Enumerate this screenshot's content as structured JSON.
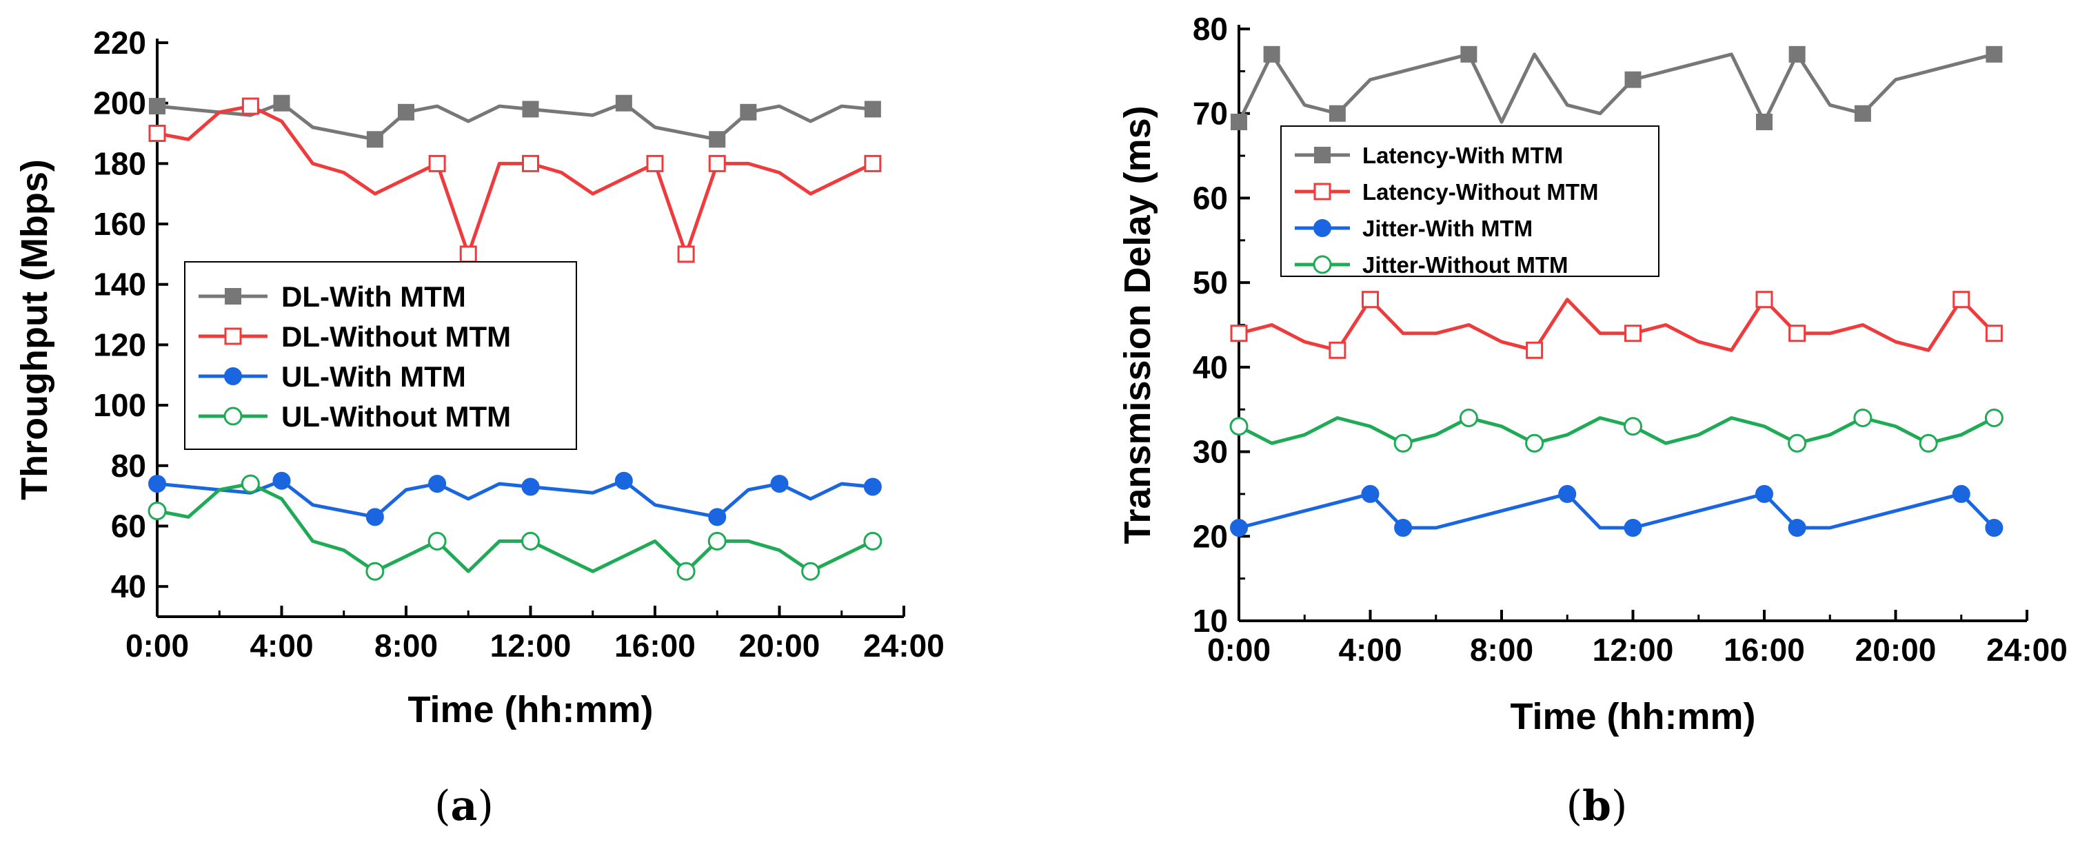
{
  "chart_data": [
    {
      "type": "line",
      "caption": "(a)",
      "caption_letter": "a",
      "xlabel": "Time (hh:mm)",
      "ylabel": "Throughput (Mbps)",
      "xlim": [
        0,
        24
      ],
      "ylim": [
        30,
        220
      ],
      "xticks": [
        0,
        4,
        8,
        12,
        16,
        20,
        24
      ],
      "xtick_labels": [
        "0:00",
        "4:00",
        "8:00",
        "12:00",
        "16:00",
        "20:00",
        "24:00"
      ],
      "yticks": [
        40,
        60,
        80,
        100,
        120,
        140,
        160,
        180,
        200,
        220
      ],
      "ytick_labels": [
        "40",
        "60",
        "80",
        "100",
        "120",
        "140",
        "160",
        "180",
        "200",
        "220"
      ],
      "legend_position": "center-left",
      "x": [
        0,
        1,
        2,
        3,
        4,
        5,
        6,
        7,
        8,
        9,
        10,
        11,
        12,
        13,
        14,
        15,
        16,
        17,
        18,
        19,
        20,
        21,
        22,
        23
      ],
      "series": [
        {
          "name": "DL-With MTM",
          "color": "#777777",
          "marker": "square-filled",
          "values": [
            199,
            198,
            197,
            196,
            200,
            192,
            190,
            188,
            197,
            199,
            194,
            199,
            198,
            197,
            196,
            200,
            192,
            190,
            188,
            197,
            199,
            194,
            199,
            198
          ],
          "marker_at": [
            0,
            4,
            7,
            8,
            12,
            15,
            18,
            19,
            23
          ]
        },
        {
          "name": "DL-Without MTM",
          "color": "#ef3b3b",
          "marker": "square-open",
          "values": [
            190,
            188,
            197,
            199,
            194,
            180,
            177,
            170,
            175,
            180,
            150,
            180,
            180,
            177,
            170,
            175,
            180,
            150,
            180,
            180,
            177,
            170,
            175,
            180
          ],
          "marker_at": [
            0,
            3,
            9,
            10,
            12,
            16,
            17,
            18,
            23
          ]
        },
        {
          "name": "UL-With MTM",
          "color": "#1a66e0",
          "marker": "circle-filled",
          "values": [
            74,
            73,
            72,
            71,
            75,
            67,
            65,
            63,
            72,
            74,
            69,
            74,
            73,
            72,
            71,
            75,
            67,
            65,
            63,
            72,
            74,
            69,
            74,
            73
          ],
          "marker_at": [
            0,
            4,
            7,
            9,
            12,
            15,
            18,
            20,
            23
          ]
        },
        {
          "name": "UL-Without MTM",
          "color": "#1faa55",
          "marker": "circle-open",
          "values": [
            65,
            63,
            72,
            74,
            69,
            55,
            52,
            45,
            50,
            55,
            45,
            55,
            55,
            50,
            45,
            50,
            55,
            45,
            55,
            55,
            52,
            45,
            50,
            55
          ],
          "marker_at": [
            0,
            3,
            7,
            9,
            12,
            17,
            18,
            21,
            23
          ]
        }
      ]
    },
    {
      "type": "line",
      "caption": "(b)",
      "caption_letter": "b",
      "xlabel": "Time (hh:mm)",
      "ylabel": "Transmission Delay (ms)",
      "xlim": [
        0,
        24
      ],
      "ylim": [
        10,
        80
      ],
      "xticks": [
        0,
        4,
        8,
        12,
        16,
        20,
        24
      ],
      "xtick_labels": [
        "0:00",
        "4:00",
        "8:00",
        "12:00",
        "16:00",
        "20:00",
        "24:00"
      ],
      "yticks": [
        10,
        20,
        30,
        40,
        50,
        60,
        70,
        80
      ],
      "ytick_labels": [
        "10",
        "20",
        "30",
        "40",
        "50",
        "60",
        "70",
        "80"
      ],
      "legend_position": "top-left",
      "x": [
        0,
        1,
        2,
        3,
        4,
        5,
        6,
        7,
        8,
        9,
        10,
        11,
        12,
        13,
        14,
        15,
        16,
        17,
        18,
        19,
        20,
        21,
        22,
        23
      ],
      "series": [
        {
          "name": "Latency-With MTM",
          "color": "#777777",
          "marker": "square-filled",
          "values": [
            69,
            77,
            71,
            70,
            74,
            75,
            76,
            77,
            69,
            77,
            71,
            70,
            74,
            75,
            76,
            77,
            69,
            77,
            71,
            70,
            74,
            75,
            76,
            77
          ],
          "marker_at": [
            0,
            1,
            3,
            7,
            12,
            16,
            17,
            19,
            23
          ]
        },
        {
          "name": "Latency-Without MTM",
          "color": "#ef3b3b",
          "marker": "square-open",
          "values": [
            44,
            45,
            43,
            42,
            48,
            44,
            44,
            45,
            43,
            42,
            48,
            44,
            44,
            45,
            43,
            42,
            48,
            44,
            44,
            45,
            43,
            42,
            48,
            44
          ],
          "marker_at": [
            0,
            3,
            4,
            9,
            12,
            16,
            17,
            22,
            23
          ]
        },
        {
          "name": "Jitter-With MTM",
          "color": "#1a66e0",
          "marker": "circle-filled",
          "values": [
            21,
            22,
            23,
            24,
            25,
            21,
            21,
            22,
            23,
            24,
            25,
            21,
            21,
            22,
            23,
            24,
            25,
            21,
            21,
            22,
            23,
            24,
            25,
            21
          ],
          "marker_at": [
            0,
            4,
            5,
            10,
            12,
            16,
            17,
            22,
            23
          ]
        },
        {
          "name": "Jitter-Without MTM",
          "color": "#1faa55",
          "marker": "circle-open",
          "values": [
            33,
            31,
            32,
            34,
            33,
            31,
            32,
            34,
            33,
            31,
            32,
            34,
            33,
            31,
            32,
            34,
            33,
            31,
            32,
            34,
            33,
            31,
            32,
            34
          ],
          "marker_at": [
            0,
            5,
            7,
            9,
            12,
            17,
            19,
            21,
            23
          ]
        }
      ]
    }
  ]
}
